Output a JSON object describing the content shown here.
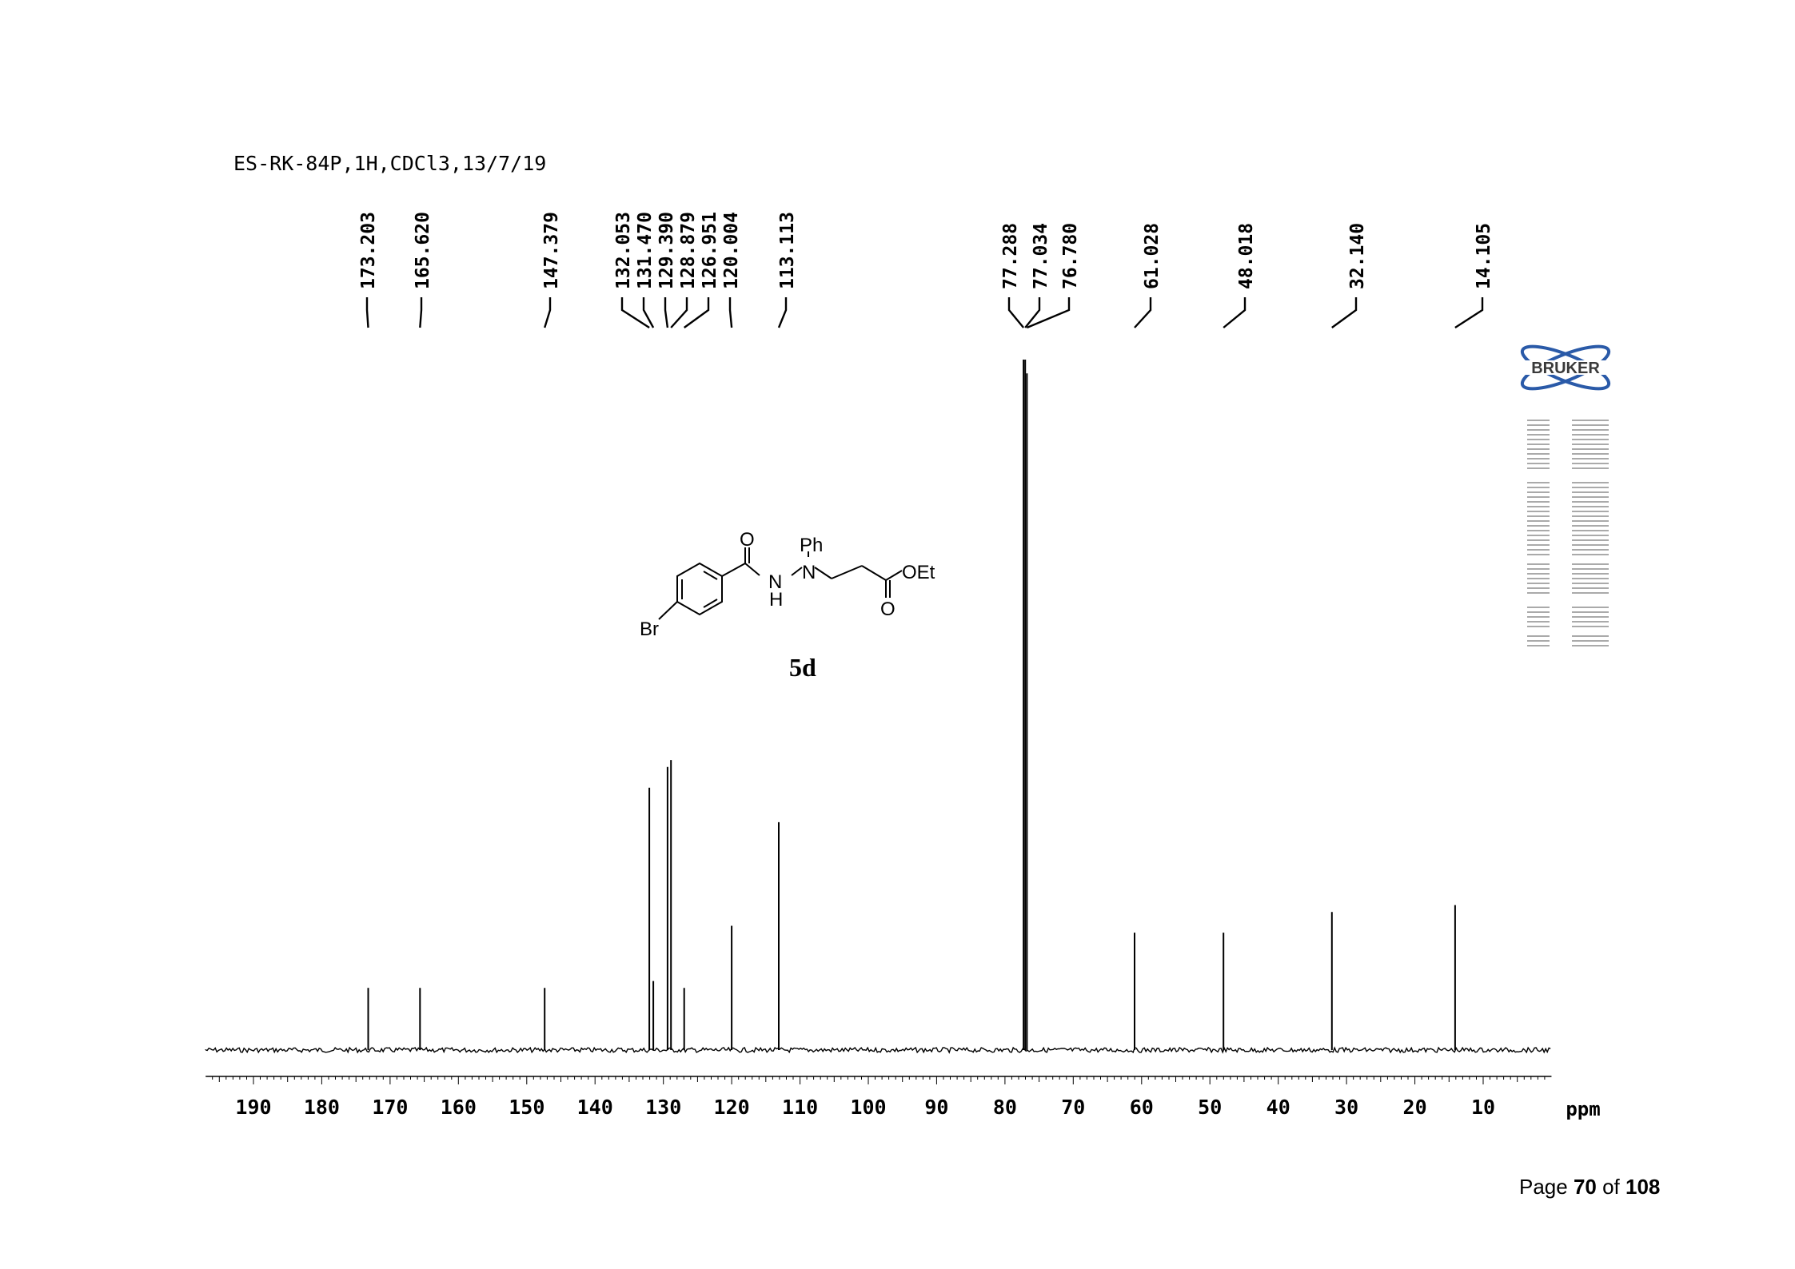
{
  "title": "ES-RK-84P,1H,CDCl3,13/7/19",
  "footer": {
    "prefix": "Page ",
    "current": "70",
    "middle": " of ",
    "total": "108"
  },
  "logo_text": "BRUKER",
  "molecule": {
    "label": "5d",
    "atoms": {
      "o1": "O",
      "o2": "O",
      "n1": "N",
      "h": "H",
      "n2": "N",
      "ph": "Ph",
      "oet": "OEt",
      "br": "Br"
    }
  },
  "colors": {
    "spectrum": "#000000",
    "background": "#ffffff",
    "text": "#000000"
  },
  "chart_data": {
    "type": "line",
    "title": "ES-RK-84P,1H,CDCl3,13/7/19",
    "xlabel": "ppm",
    "xlim": [
      197,
      0
    ],
    "x_reversed": true,
    "ticks": [
      190,
      180,
      170,
      160,
      150,
      140,
      130,
      120,
      110,
      100,
      90,
      80,
      70,
      60,
      50,
      40,
      30,
      20,
      10
    ],
    "peak_labels": [
      "173.203",
      "165.620",
      "147.379",
      "132.053",
      "131.470",
      "129.390",
      "128.879",
      "126.951",
      "120.004",
      "113.113",
      "77.288",
      "77.034",
      "76.780",
      "61.028",
      "48.018",
      "32.140",
      "14.105"
    ],
    "peaks": [
      {
        "ppm": 173.203,
        "height": 0.09
      },
      {
        "ppm": 165.62,
        "height": 0.09
      },
      {
        "ppm": 147.379,
        "height": 0.09
      },
      {
        "ppm": 132.053,
        "height": 0.38
      },
      {
        "ppm": 131.47,
        "height": 0.1
      },
      {
        "ppm": 129.39,
        "height": 0.41
      },
      {
        "ppm": 128.879,
        "height": 0.42
      },
      {
        "ppm": 126.951,
        "height": 0.09
      },
      {
        "ppm": 120.004,
        "height": 0.18
      },
      {
        "ppm": 113.113,
        "height": 0.33
      },
      {
        "ppm": 77.288,
        "height": 1.0
      },
      {
        "ppm": 77.034,
        "height": 1.0
      },
      {
        "ppm": 76.78,
        "height": 0.98
      },
      {
        "ppm": 61.028,
        "height": 0.17
      },
      {
        "ppm": 48.018,
        "height": 0.17
      },
      {
        "ppm": 32.14,
        "height": 0.2
      },
      {
        "ppm": 14.105,
        "height": 0.21
      }
    ]
  }
}
